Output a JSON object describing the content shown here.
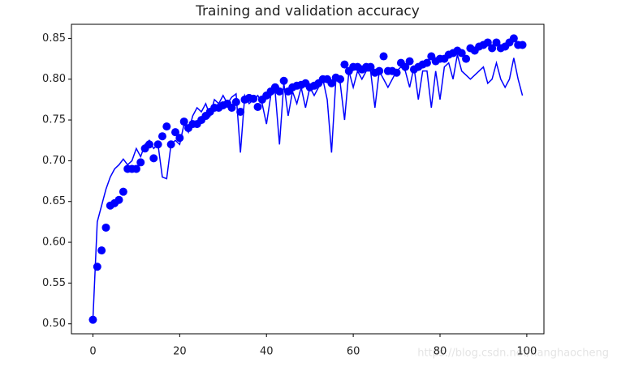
{
  "chart_data": {
    "type": "line",
    "title": "Training and validation accuracy",
    "x": [
      0,
      1,
      2,
      3,
      4,
      5,
      6,
      7,
      8,
      9,
      10,
      11,
      12,
      13,
      14,
      15,
      16,
      17,
      18,
      19,
      20,
      21,
      22,
      23,
      24,
      25,
      26,
      27,
      28,
      29,
      30,
      31,
      32,
      33,
      34,
      35,
      36,
      37,
      38,
      39,
      40,
      41,
      42,
      43,
      44,
      45,
      46,
      47,
      48,
      49,
      50,
      51,
      52,
      53,
      54,
      55,
      56,
      57,
      58,
      59,
      60,
      61,
      62,
      63,
      64,
      65,
      66,
      67,
      68,
      69,
      70,
      71,
      72,
      73,
      74,
      75,
      76,
      77,
      78,
      79,
      80,
      81,
      82,
      83,
      84,
      85,
      86,
      87,
      88,
      89,
      90,
      91,
      92,
      93,
      94,
      95,
      96,
      97,
      98,
      99
    ],
    "series": [
      {
        "color": "#0000ff",
        "style": "markers",
        "values": [
          0.505,
          0.57,
          0.59,
          0.618,
          0.645,
          0.648,
          0.652,
          0.662,
          0.69,
          0.69,
          0.69,
          0.698,
          0.715,
          0.72,
          0.703,
          0.72,
          0.73,
          0.742,
          0.72,
          0.735,
          0.728,
          0.748,
          0.74,
          0.745,
          0.745,
          0.75,
          0.755,
          0.76,
          0.765,
          0.765,
          0.768,
          0.77,
          0.765,
          0.772,
          0.76,
          0.775,
          0.777,
          0.776,
          0.766,
          0.775,
          0.78,
          0.785,
          0.79,
          0.785,
          0.798,
          0.785,
          0.79,
          0.792,
          0.793,
          0.795,
          0.79,
          0.792,
          0.795,
          0.8,
          0.8,
          0.795,
          0.802,
          0.8,
          0.818,
          0.81,
          0.815,
          0.815,
          0.812,
          0.815,
          0.815,
          0.808,
          0.81,
          0.828,
          0.81,
          0.81,
          0.808,
          0.82,
          0.815,
          0.822,
          0.812,
          0.815,
          0.818,
          0.82,
          0.828,
          0.822,
          0.825,
          0.825,
          0.83,
          0.832,
          0.835,
          0.832,
          0.825,
          0.838,
          0.835,
          0.84,
          0.842,
          0.845,
          0.838,
          0.845,
          0.838,
          0.84,
          0.845,
          0.85,
          0.842,
          0.842
        ]
      },
      {
        "color": "#0000ff",
        "style": "line",
        "values": [
          0.505,
          0.625,
          0.645,
          0.665,
          0.68,
          0.69,
          0.695,
          0.702,
          0.695,
          0.7,
          0.715,
          0.705,
          0.72,
          0.725,
          0.715,
          0.72,
          0.68,
          0.678,
          0.72,
          0.725,
          0.72,
          0.745,
          0.735,
          0.755,
          0.765,
          0.76,
          0.77,
          0.755,
          0.775,
          0.77,
          0.78,
          0.77,
          0.778,
          0.782,
          0.71,
          0.78,
          0.77,
          0.775,
          0.78,
          0.77,
          0.745,
          0.78,
          0.785,
          0.72,
          0.795,
          0.755,
          0.785,
          0.77,
          0.79,
          0.765,
          0.79,
          0.78,
          0.79,
          0.8,
          0.775,
          0.71,
          0.8,
          0.795,
          0.75,
          0.81,
          0.79,
          0.81,
          0.8,
          0.81,
          0.81,
          0.765,
          0.81,
          0.8,
          0.79,
          0.8,
          0.81,
          0.815,
          0.81,
          0.79,
          0.815,
          0.775,
          0.81,
          0.81,
          0.765,
          0.81,
          0.775,
          0.815,
          0.82,
          0.8,
          0.83,
          0.81,
          0.805,
          0.8,
          0.805,
          0.81,
          0.815,
          0.795,
          0.8,
          0.82,
          0.8,
          0.79,
          0.8,
          0.826,
          0.8,
          0.78
        ]
      }
    ],
    "xlim": [
      -4.95,
      103.95
    ],
    "xticks": [
      0,
      20,
      40,
      60,
      80,
      100
    ],
    "ylim": [
      0.4878,
      0.8673
    ],
    "yticks": [
      {
        "value": 0.5,
        "label": "0.50"
      },
      0.55,
      {
        "value": 0.6,
        "label": "0.60"
      },
      0.65,
      {
        "value": 0.7,
        "label": "0.70"
      },
      0.75,
      {
        "value": 0.8,
        "label": "0.80"
      },
      0.85
    ],
    "grid": false,
    "watermark": "https://blog.csdn.net/hanghaocheng"
  }
}
